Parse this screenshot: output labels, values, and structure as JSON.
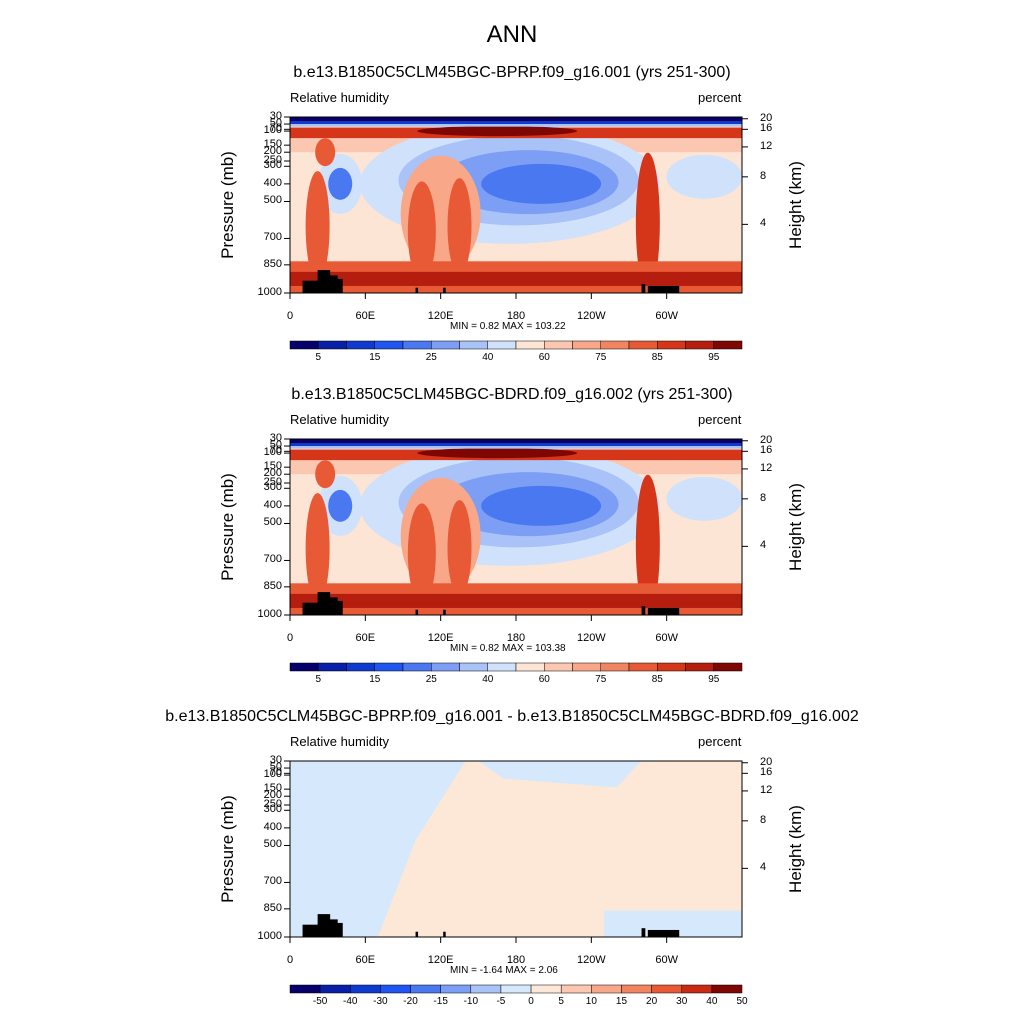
{
  "figure_title": "ANN",
  "chart_data": [
    {
      "type": "contour",
      "title": "b.e13.B1850C5CLM45BGC-BPRP.f09_g16.001 (yrs 251-300)",
      "variable": "Relative humidity",
      "units": "percent",
      "ylabel_left": "Pressure (mb)",
      "ylabel_right": "Height (km)",
      "pressure_ticks": [
        "30",
        "50",
        "70",
        "100",
        "150",
        "200",
        "250",
        "300",
        "400",
        "500",
        "700",
        "850",
        "1000"
      ],
      "height_ticks": [
        "4",
        "8",
        "12",
        "16",
        "20"
      ],
      "x_ticks": [
        "0",
        "60E",
        "120E",
        "180",
        "120W",
        "60W"
      ],
      "xlim": [
        0,
        360
      ],
      "ylim_mb": [
        1000,
        30
      ],
      "min_max_text": "MIN =   0.82  MAX = 103.22",
      "min": 0.82,
      "max": 103.22,
      "colorbar_levels": [
        5,
        10,
        15,
        20,
        25,
        30,
        40,
        50,
        60,
        65,
        70,
        75,
        80,
        85,
        90,
        95
      ],
      "colorbar_labels": [
        "5",
        "15",
        "25",
        "40",
        "60",
        "75",
        "85",
        "95"
      ]
    },
    {
      "type": "contour",
      "title": "b.e13.B1850C5CLM45BGC-BDRD.f09_g16.002 (yrs 251-300)",
      "variable": "Relative humidity",
      "units": "percent",
      "ylabel_left": "Pressure (mb)",
      "ylabel_right": "Height (km)",
      "pressure_ticks": [
        "30",
        "50",
        "70",
        "100",
        "150",
        "200",
        "250",
        "300",
        "400",
        "500",
        "700",
        "850",
        "1000"
      ],
      "height_ticks": [
        "4",
        "8",
        "12",
        "16",
        "20"
      ],
      "x_ticks": [
        "0",
        "60E",
        "120E",
        "180",
        "120W",
        "60W"
      ],
      "xlim": [
        0,
        360
      ],
      "ylim_mb": [
        1000,
        30
      ],
      "min_max_text": "MIN =   0.82  MAX = 103.38",
      "min": 0.82,
      "max": 103.38,
      "colorbar_levels": [
        5,
        10,
        15,
        20,
        25,
        30,
        40,
        50,
        60,
        65,
        70,
        75,
        80,
        85,
        90,
        95
      ],
      "colorbar_labels": [
        "5",
        "15",
        "25",
        "40",
        "60",
        "75",
        "85",
        "95"
      ]
    },
    {
      "type": "contour",
      "title": "b.e13.B1850C5CLM45BGC-BPRP.f09_g16.001 - b.e13.B1850C5CLM45BGC-BDRD.f09_g16.002",
      "variable": "Relative humidity",
      "units": "percent",
      "ylabel_left": "Pressure (mb)",
      "ylabel_right": "Height (km)",
      "pressure_ticks": [
        "30",
        "50",
        "70",
        "100",
        "150",
        "200",
        "250",
        "300",
        "400",
        "500",
        "700",
        "850",
        "1000"
      ],
      "height_ticks": [
        "4",
        "8",
        "12",
        "16",
        "20"
      ],
      "x_ticks": [
        "0",
        "60E",
        "120E",
        "180",
        "120W",
        "60W"
      ],
      "xlim": [
        0,
        360
      ],
      "ylim_mb": [
        1000,
        30
      ],
      "min_max_text": "MIN =  -1.64  MAX =   2.06",
      "min": -1.64,
      "max": 2.06,
      "colorbar_levels": [
        -50,
        -40,
        -30,
        -20,
        -15,
        -10,
        -5,
        0,
        5,
        10,
        15,
        20,
        30,
        40,
        50
      ],
      "colorbar_labels": [
        "-50",
        "-40",
        "-30",
        "-20",
        "-15",
        "-10",
        "-5",
        "0",
        "5",
        "10",
        "15",
        "20",
        "30",
        "40",
        "50"
      ]
    }
  ],
  "colors": {
    "abs_scale": [
      "#08006a",
      "#0a1fa8",
      "#0f3ad0",
      "#1f55f0",
      "#4a78f0",
      "#7c9ff5",
      "#a9c2f7",
      "#d0e2fb",
      "#fde5d5",
      "#fbc7b0",
      "#f8a888",
      "#f28560",
      "#e85a36",
      "#d53518",
      "#b51e0e",
      "#7e0704"
    ],
    "diff_scale": [
      "#08006a",
      "#0a1fa8",
      "#0f3ad0",
      "#1f55f0",
      "#4a78f0",
      "#7c9ff5",
      "#a9c2f7",
      "#d6e8fb",
      "#fde8d8",
      "#fbc7b0",
      "#f8a888",
      "#f28560",
      "#e85a36",
      "#c82a14",
      "#7e0704"
    ],
    "topography": "#000000"
  }
}
